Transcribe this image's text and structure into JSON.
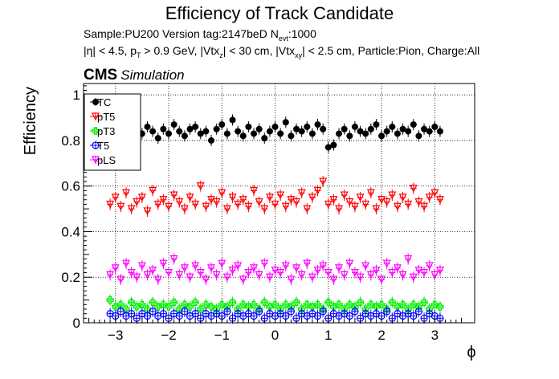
{
  "header": {
    "title": "Efficiency of Track Candidate",
    "sample_text": "Sample:PU200   Version tag:2147beD  N",
    "sample_sub": "evt",
    "sample_tail": ":1000",
    "cuts_a": "|η| < 4.5, p",
    "cuts_a_sub": "T",
    "cuts_b": " > 0.9 GeV, |Vtx",
    "cuts_b_sub": "z",
    "cuts_c": "| < 30 cm, |Vtx",
    "cuts_c_sub": "xy",
    "cuts_d": "| < 2.5 cm, Particle:Pion, Charge:All"
  },
  "cms_label": {
    "bold": "CMS",
    "italic": "Simulation"
  },
  "colors": {
    "TC": "#000000",
    "pT5": "#ff0000",
    "pT3": "#00ee00",
    "T5": "#0000ff",
    "pLS": "#ff00ff"
  },
  "chart_data": {
    "type": "scatter",
    "xlabel": "ϕ",
    "ylabel": "Efficiency",
    "xlim": [
      -3.6,
      3.75
    ],
    "ylim": [
      0,
      1.05
    ],
    "x_ticks": [
      -3,
      -2,
      -1,
      0,
      1,
      2,
      3
    ],
    "x_tick_labels": [
      "−3",
      "−2",
      "−1",
      "0",
      "1",
      "2",
      "3"
    ],
    "y_ticks": [
      0,
      0.2,
      0.4,
      0.6,
      0.8,
      1
    ],
    "y_tick_labels": [
      "0",
      "0.2",
      "0.4",
      "0.6",
      "0.8",
      "1"
    ],
    "grid": true,
    "legend_position": "top-left",
    "x": [
      -3.1,
      -3.0,
      -2.9,
      -2.8,
      -2.7,
      -2.6,
      -2.5,
      -2.4,
      -2.3,
      -2.2,
      -2.1,
      -2.0,
      -1.9,
      -1.8,
      -1.7,
      -1.6,
      -1.5,
      -1.4,
      -1.3,
      -1.2,
      -1.1,
      -1.0,
      -0.9,
      -0.8,
      -0.7,
      -0.6,
      -0.5,
      -0.4,
      -0.3,
      -0.2,
      -0.1,
      0.0,
      0.1,
      0.2,
      0.3,
      0.4,
      0.5,
      0.6,
      0.7,
      0.8,
      0.9,
      1.0,
      1.1,
      1.2,
      1.3,
      1.4,
      1.5,
      1.6,
      1.7,
      1.8,
      1.9,
      2.0,
      2.1,
      2.2,
      2.3,
      2.4,
      2.5,
      2.6,
      2.7,
      2.8,
      2.9,
      3.0,
      3.1
    ],
    "series": [
      {
        "name": "TC",
        "marker": "filled-circle",
        "values": [
          0.84,
          0.83,
          0.86,
          0.82,
          0.85,
          0.88,
          0.83,
          0.86,
          0.84,
          0.81,
          0.85,
          0.83,
          0.87,
          0.84,
          0.82,
          0.85,
          0.86,
          0.83,
          0.84,
          0.8,
          0.85,
          0.87,
          0.83,
          0.89,
          0.84,
          0.82,
          0.86,
          0.83,
          0.85,
          0.81,
          0.84,
          0.86,
          0.83,
          0.88,
          0.82,
          0.85,
          0.84,
          0.86,
          0.83,
          0.87,
          0.85,
          0.77,
          0.78,
          0.83,
          0.85,
          0.82,
          0.86,
          0.84,
          0.83,
          0.85,
          0.87,
          0.82,
          0.84,
          0.86,
          0.83,
          0.85,
          0.84,
          0.87,
          0.82,
          0.85,
          0.84,
          0.86,
          0.84
        ]
      },
      {
        "name": "pT5",
        "marker": "open-triangle-down",
        "values": [
          0.52,
          0.55,
          0.51,
          0.57,
          0.5,
          0.53,
          0.55,
          0.49,
          0.58,
          0.52,
          0.54,
          0.51,
          0.56,
          0.53,
          0.5,
          0.55,
          0.52,
          0.6,
          0.51,
          0.54,
          0.53,
          0.57,
          0.5,
          0.55,
          0.52,
          0.54,
          0.51,
          0.58,
          0.53,
          0.5,
          0.55,
          0.52,
          0.56,
          0.51,
          0.54,
          0.53,
          0.57,
          0.5,
          0.55,
          0.58,
          0.62,
          0.52,
          0.54,
          0.5,
          0.56,
          0.53,
          0.51,
          0.55,
          0.52,
          0.57,
          0.5,
          0.54,
          0.53,
          0.56,
          0.51,
          0.55,
          0.52,
          0.59,
          0.53,
          0.51,
          0.55,
          0.57,
          0.54
        ]
      },
      {
        "name": "pT3",
        "marker": "open-cross",
        "values": [
          0.1,
          0.07,
          0.08,
          0.06,
          0.09,
          0.07,
          0.08,
          0.06,
          0.09,
          0.07,
          0.08,
          0.07,
          0.09,
          0.06,
          0.08,
          0.07,
          0.09,
          0.06,
          0.08,
          0.07,
          0.06,
          0.08,
          0.07,
          0.09,
          0.06,
          0.08,
          0.07,
          0.08,
          0.06,
          0.09,
          0.07,
          0.08,
          0.06,
          0.08,
          0.07,
          0.09,
          0.06,
          0.08,
          0.07,
          0.08,
          0.06,
          0.09,
          0.07,
          0.08,
          0.06,
          0.08,
          0.07,
          0.09,
          0.06,
          0.08,
          0.07,
          0.08,
          0.06,
          0.09,
          0.07,
          0.08,
          0.06,
          0.08,
          0.07,
          0.09,
          0.06,
          0.08,
          0.07
        ]
      },
      {
        "name": "T5",
        "marker": "open-circle",
        "values": [
          0.04,
          0.03,
          0.05,
          0.03,
          0.04,
          0.02,
          0.04,
          0.03,
          0.05,
          0.03,
          0.04,
          0.02,
          0.04,
          0.03,
          0.05,
          0.03,
          0.04,
          0.02,
          0.04,
          0.03,
          0.04,
          0.03,
          0.05,
          0.02,
          0.04,
          0.03,
          0.04,
          0.03,
          0.05,
          0.02,
          0.04,
          0.03,
          0.04,
          0.03,
          0.05,
          0.02,
          0.04,
          0.03,
          0.04,
          0.03,
          0.05,
          0.02,
          0.04,
          0.03,
          0.04,
          0.03,
          0.05,
          0.02,
          0.04,
          0.03,
          0.04,
          0.03,
          0.05,
          0.02,
          0.04,
          0.03,
          0.04,
          0.03,
          0.05,
          0.02,
          0.04,
          0.03,
          0.02
        ]
      },
      {
        "name": "pLS",
        "marker": "open-triangle-down",
        "values": [
          0.21,
          0.24,
          0.19,
          0.26,
          0.22,
          0.2,
          0.25,
          0.21,
          0.23,
          0.19,
          0.26,
          0.22,
          0.28,
          0.21,
          0.24,
          0.2,
          0.25,
          0.22,
          0.19,
          0.24,
          0.21,
          0.26,
          0.2,
          0.23,
          0.25,
          0.19,
          0.22,
          0.24,
          0.21,
          0.26,
          0.2,
          0.23,
          0.22,
          0.25,
          0.19,
          0.24,
          0.21,
          0.26,
          0.2,
          0.23,
          0.25,
          0.22,
          0.19,
          0.24,
          0.21,
          0.26,
          0.22,
          0.2,
          0.25,
          0.21,
          0.23,
          0.19,
          0.26,
          0.22,
          0.24,
          0.21,
          0.28,
          0.2,
          0.23,
          0.22,
          0.25,
          0.21,
          0.23
        ]
      }
    ]
  }
}
